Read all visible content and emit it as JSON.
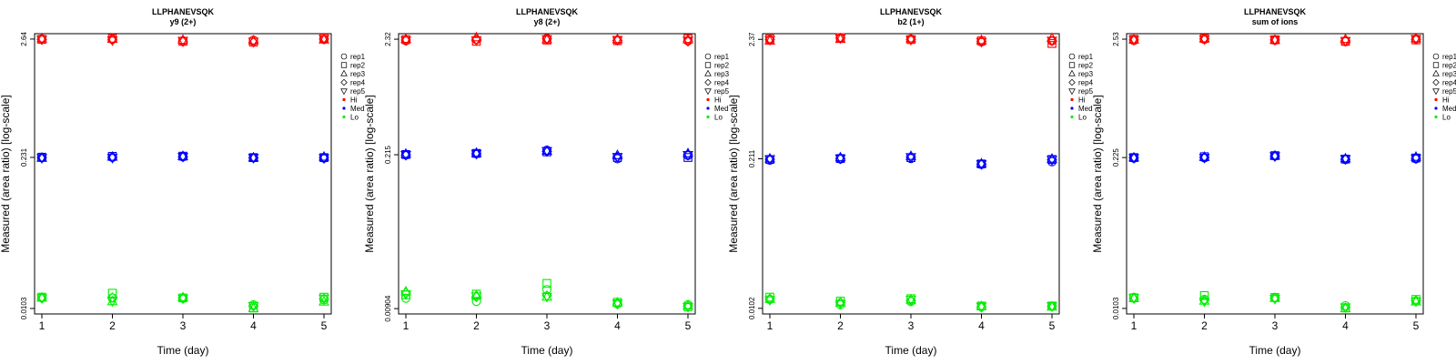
{
  "chart_data": [
    {
      "type": "scatter",
      "title": "LLPHANEVSQK",
      "subtitle": "y9 (2+)",
      "xlabel": "Time (day)",
      "ylabel": "Measured (area ratio) [log-scale]",
      "x_ticks": [
        "1",
        "2",
        "3",
        "4",
        "5"
      ],
      "y_ticks": [
        "0.0103",
        "0.231",
        "2.64"
      ],
      "ylim": [
        0.0092,
        2.95
      ],
      "levels": [
        {
          "name": "Hi",
          "color": "#ff0000",
          "reps": [
            [
              2.65,
              2.63,
              2.55,
              2.58,
              2.62
            ],
            [
              2.62,
              2.68,
              2.52,
              2.48,
              2.7
            ],
            [
              2.66,
              2.64,
              2.58,
              2.55,
              2.6
            ],
            [
              2.61,
              2.6,
              2.5,
              2.47,
              2.64
            ],
            [
              2.63,
              2.58,
              2.56,
              2.52,
              2.66
            ]
          ]
        },
        {
          "name": "Med",
          "color": "#0000ff",
          "reps": [
            [
              0.229,
              0.231,
              0.234,
              0.229,
              0.228
            ],
            [
              0.232,
              0.236,
              0.237,
              0.23,
              0.23
            ],
            [
              0.228,
              0.233,
              0.236,
              0.229,
              0.233
            ],
            [
              0.23,
              0.231,
              0.233,
              0.228,
              0.229
            ],
            [
              0.229,
              0.23,
              0.235,
              0.23,
              0.228
            ]
          ]
        },
        {
          "name": "Lo",
          "color": "#00ee00",
          "reps": [
            [
              0.0129,
              0.0128,
              0.0127,
              0.0111,
              0.0123
            ],
            [
              0.013,
              0.0141,
              0.0128,
              0.0104,
              0.013
            ],
            [
              0.0128,
              0.0119,
              0.0129,
              0.0103,
              0.0118
            ],
            [
              0.0127,
              0.0129,
              0.0128,
              0.0108,
              0.0126
            ],
            [
              0.0128,
              0.012,
              0.0127,
              0.0109,
              0.0127
            ]
          ]
        }
      ]
    },
    {
      "type": "scatter",
      "title": "LLPHANEVSQK",
      "subtitle": "y8 (2+)",
      "xlabel": "Time (day)",
      "ylabel": "Measured (area ratio) [log-scale]",
      "x_ticks": [
        "1",
        "2",
        "3",
        "4",
        "5"
      ],
      "y_ticks": [
        "0.00904",
        "0.215",
        "2.32"
      ],
      "ylim": [
        0.0081,
        2.6
      ],
      "levels": [
        {
          "name": "Hi",
          "color": "#ff0000",
          "reps": [
            [
              2.25,
              2.3,
              2.36,
              2.28,
              2.24
            ],
            [
              2.3,
              2.22,
              2.28,
              2.25,
              2.35
            ],
            [
              2.32,
              2.4,
              2.3,
              2.31,
              2.3
            ],
            [
              2.28,
              2.31,
              2.34,
              2.26,
              2.22
            ],
            [
              2.27,
              2.28,
              2.33,
              2.3,
              2.26
            ]
          ]
        },
        {
          "name": "Med",
          "color": "#0000ff",
          "reps": [
            [
              0.214,
              0.22,
              0.236,
              0.198,
              0.212
            ],
            [
              0.216,
              0.221,
              0.228,
              0.203,
              0.203
            ],
            [
              0.218,
              0.222,
              0.232,
              0.212,
              0.22
            ],
            [
              0.213,
              0.219,
              0.23,
              0.205,
              0.214
            ],
            [
              0.215,
              0.22,
              0.233,
              0.206,
              0.215
            ]
          ]
        },
        {
          "name": "Lo",
          "color": "#00ee00",
          "reps": [
            [
              0.0112,
              0.0105,
              0.0134,
              0.01,
              0.0098
            ],
            [
              0.012,
              0.0122,
              0.0152,
              0.0103,
              0.0094
            ],
            [
              0.0128,
              0.0118,
              0.0115,
              0.0102,
              0.0096
            ],
            [
              0.0125,
              0.0115,
              0.0118,
              0.0099,
              0.0095
            ],
            [
              0.0122,
              0.0117,
              0.0116,
              0.0101,
              0.0094
            ]
          ]
        }
      ]
    },
    {
      "type": "scatter",
      "title": "LLPHANEVSQK",
      "subtitle": "b2 (1+)",
      "xlabel": "Time (day)",
      "ylabel": "Measured (area ratio) [log-scale]",
      "x_ticks": [
        "1",
        "2",
        "3",
        "4",
        "5"
      ],
      "y_ticks": [
        "0.0102",
        "0.211",
        "2.37"
      ],
      "ylim": [
        0.0091,
        2.66
      ],
      "levels": [
        {
          "name": "Hi",
          "color": "#ff0000",
          "reps": [
            [
              2.34,
              2.42,
              2.38,
              2.25,
              2.3
            ],
            [
              2.4,
              2.46,
              2.36,
              2.3,
              2.18
            ],
            [
              2.3,
              2.38,
              2.4,
              2.32,
              2.42
            ],
            [
              2.36,
              2.44,
              2.37,
              2.28,
              2.3
            ],
            [
              2.35,
              2.43,
              2.36,
              2.26,
              2.32
            ]
          ]
        },
        {
          "name": "Med",
          "color": "#0000ff",
          "reps": [
            [
              0.205,
              0.21,
              0.212,
              0.188,
              0.199
            ],
            [
              0.208,
              0.212,
              0.216,
              0.19,
              0.208
            ],
            [
              0.211,
              0.216,
              0.222,
              0.191,
              0.21
            ],
            [
              0.209,
              0.211,
              0.218,
              0.189,
              0.206
            ],
            [
              0.21,
              0.213,
              0.219,
              0.19,
              0.208
            ]
          ]
        },
        {
          "name": "Lo",
          "color": "#00ee00",
          "reps": [
            [
              0.0122,
              0.011,
              0.0117,
              0.0105,
              0.0106
            ],
            [
              0.0128,
              0.0118,
              0.0124,
              0.0107,
              0.0107
            ],
            [
              0.0123,
              0.0114,
              0.0121,
              0.0106,
              0.0105
            ],
            [
              0.0124,
              0.0115,
              0.0119,
              0.0104,
              0.0106
            ],
            [
              0.0121,
              0.0112,
              0.0122,
              0.0106,
              0.0107
            ]
          ]
        }
      ]
    },
    {
      "type": "scatter",
      "title": "LLPHANEVSQK",
      "subtitle": "sum of ions",
      "xlabel": "Time (day)",
      "ylabel": "Measured (area ratio) [log-scale]",
      "x_ticks": [
        "1",
        "2",
        "3",
        "4",
        "5"
      ],
      "y_ticks": [
        "0.0103",
        "0.225",
        "2.53"
      ],
      "ylim": [
        0.0092,
        2.83
      ],
      "levels": [
        {
          "name": "Hi",
          "color": "#ff0000",
          "reps": [
            [
              2.46,
              2.52,
              2.47,
              2.4,
              2.54
            ],
            [
              2.52,
              2.57,
              2.5,
              2.42,
              2.49
            ],
            [
              2.5,
              2.56,
              2.48,
              2.52,
              2.56
            ],
            [
              2.49,
              2.55,
              2.49,
              2.44,
              2.52
            ],
            [
              2.51,
              2.53,
              2.5,
              2.45,
              2.55
            ]
          ]
        },
        {
          "name": "Med",
          "color": "#0000ff",
          "reps": [
            [
              0.222,
              0.223,
              0.232,
              0.216,
              0.219
            ],
            [
              0.225,
              0.229,
              0.234,
              0.218,
              0.223
            ],
            [
              0.224,
              0.227,
              0.233,
              0.22,
              0.227
            ],
            [
              0.223,
              0.226,
              0.231,
              0.217,
              0.221
            ],
            [
              0.224,
              0.225,
              0.232,
              0.219,
              0.222
            ]
          ]
        },
        {
          "name": "Lo",
          "color": "#00ee00",
          "reps": [
            [
              0.0129,
              0.0124,
              0.0128,
              0.0109,
              0.012
            ],
            [
              0.0128,
              0.0134,
              0.0129,
              0.0104,
              0.0124
            ],
            [
              0.0127,
              0.012,
              0.0127,
              0.0103,
              0.0118
            ],
            [
              0.0126,
              0.0122,
              0.0128,
              0.0105,
              0.0121
            ],
            [
              0.0128,
              0.0119,
              0.0126,
              0.0106,
              0.0119
            ]
          ]
        }
      ]
    }
  ],
  "legend": {
    "reps": [
      {
        "label": "rep1",
        "symbol": "circle"
      },
      {
        "label": "rep2",
        "symbol": "square"
      },
      {
        "label": "rep3",
        "symbol": "triangle-up"
      },
      {
        "label": "rep4",
        "symbol": "diamond"
      },
      {
        "label": "rep5",
        "symbol": "triangle-down"
      }
    ],
    "levels": [
      {
        "label": "Hi",
        "color": "#ff0000"
      },
      {
        "label": "Med",
        "color": "#0000ff"
      },
      {
        "label": "Lo",
        "color": "#00ee00"
      }
    ]
  }
}
